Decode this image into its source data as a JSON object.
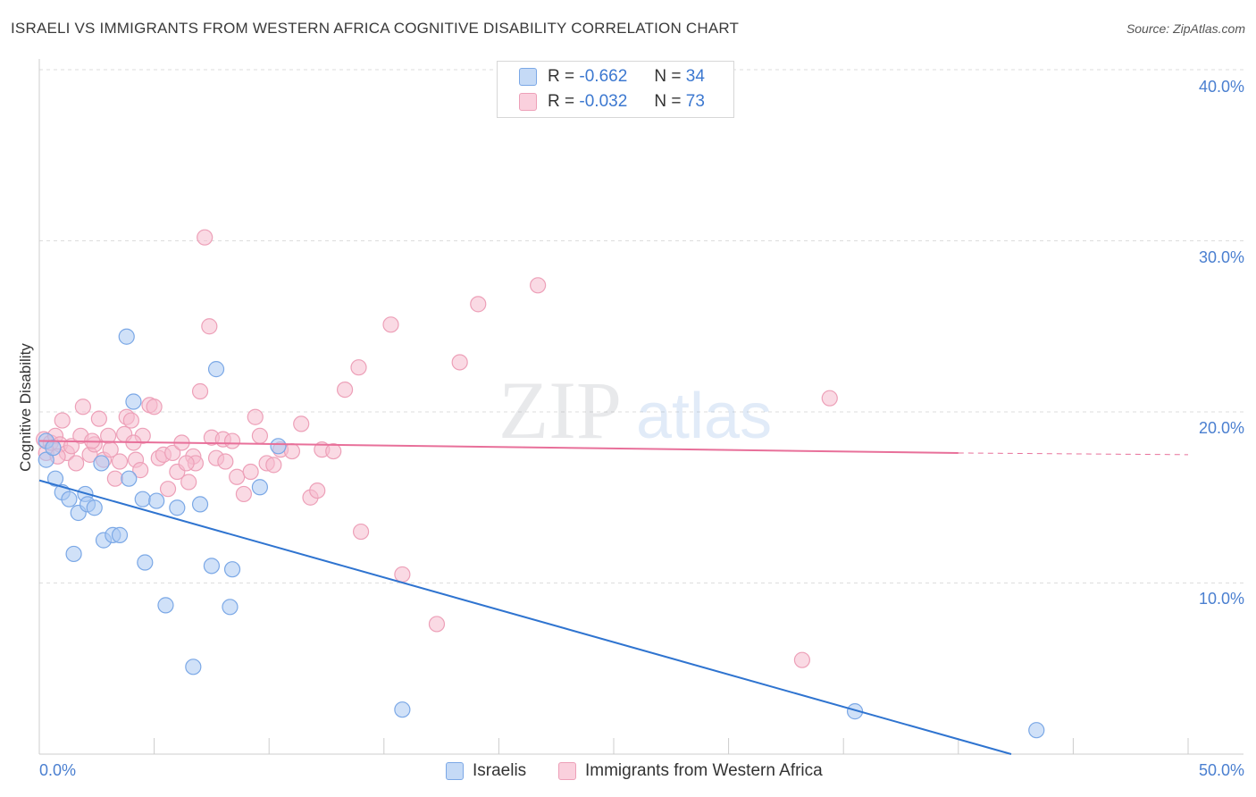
{
  "title": "ISRAELI VS IMMIGRANTS FROM WESTERN AFRICA COGNITIVE DISABILITY CORRELATION CHART",
  "source": "Source: ZipAtlas.com",
  "watermark": {
    "zip": "ZIP",
    "atlas": "atlas"
  },
  "legend_top": [
    {
      "r_label": "R =",
      "r_value": "-0.662",
      "n_label": "N =",
      "n_value": "34"
    },
    {
      "r_label": "R =",
      "r_value": "-0.032",
      "n_label": "N =",
      "n_value": "73"
    }
  ],
  "chart_data": {
    "type": "scatter",
    "title": "ISRAELI VS IMMIGRANTS FROM WESTERN AFRICA COGNITIVE DISABILITY CORRELATION CHART",
    "xlabel": "",
    "ylabel": "Cognitive Disability",
    "xlim": [
      0,
      50
    ],
    "ylim": [
      0,
      40
    ],
    "x_tick_labels": [
      "0.0%",
      "50.0%"
    ],
    "y_ticks": [
      10,
      20,
      30,
      40
    ],
    "y_tick_labels": [
      "10.0%",
      "20.0%",
      "30.0%",
      "40.0%"
    ],
    "grid": true,
    "legend_position": "bottom",
    "colors": {
      "israelis_fill": "#a9c8f2",
      "israelis_stroke": "#7ba8e6",
      "israelis_line": "#2f74d0",
      "immigrants_fill": "#f6bccd",
      "immigrants_stroke": "#eda0b8",
      "immigrants_line": "#e8709a",
      "grid": "#dddddd",
      "axis": "#cccccc"
    },
    "series": [
      {
        "name": "Israelis",
        "trend": {
          "x0": 0,
          "y0": 16.0,
          "x1": 42.3,
          "y1": 0.0
        },
        "points": [
          [
            0.3,
            18.3
          ],
          [
            0.3,
            17.2
          ],
          [
            0.7,
            16.1
          ],
          [
            1.0,
            15.3
          ],
          [
            1.3,
            14.9
          ],
          [
            1.5,
            11.7
          ],
          [
            1.7,
            14.1
          ],
          [
            2.0,
            15.2
          ],
          [
            2.1,
            14.6
          ],
          [
            2.4,
            14.4
          ],
          [
            2.7,
            17.0
          ],
          [
            2.8,
            12.5
          ],
          [
            3.2,
            12.8
          ],
          [
            3.5,
            12.8
          ],
          [
            3.8,
            24.4
          ],
          [
            3.9,
            16.1
          ],
          [
            4.1,
            20.6
          ],
          [
            4.5,
            14.9
          ],
          [
            4.6,
            11.2
          ],
          [
            5.1,
            14.8
          ],
          [
            5.5,
            8.7
          ],
          [
            6.0,
            14.4
          ],
          [
            6.7,
            5.1
          ],
          [
            7.0,
            14.6
          ],
          [
            7.5,
            11.0
          ],
          [
            7.7,
            22.5
          ],
          [
            8.3,
            8.6
          ],
          [
            8.4,
            10.8
          ],
          [
            9.6,
            15.6
          ],
          [
            10.4,
            18.0
          ],
          [
            15.8,
            2.6
          ],
          [
            35.5,
            2.5
          ],
          [
            43.4,
            1.4
          ],
          [
            0.6,
            17.9
          ]
        ]
      },
      {
        "name": "Immigrants from Western Africa",
        "trend": {
          "x0": 0,
          "y0": 18.3,
          "x1": 40.0,
          "y1": 17.6,
          "dash_x1": 50.0,
          "dash_y1": 17.5
        },
        "points": [
          [
            0.2,
            18.4
          ],
          [
            0.3,
            17.6
          ],
          [
            0.5,
            18.2
          ],
          [
            0.7,
            18.6
          ],
          [
            0.9,
            18.1
          ],
          [
            1.0,
            19.5
          ],
          [
            1.2,
            17.6
          ],
          [
            1.4,
            18.0
          ],
          [
            1.6,
            17.0
          ],
          [
            1.8,
            18.6
          ],
          [
            1.9,
            20.3
          ],
          [
            2.2,
            17.5
          ],
          [
            2.4,
            18.1
          ],
          [
            2.6,
            19.6
          ],
          [
            2.8,
            17.2
          ],
          [
            3.0,
            18.6
          ],
          [
            3.1,
            17.8
          ],
          [
            3.3,
            16.1
          ],
          [
            3.5,
            17.1
          ],
          [
            3.7,
            18.7
          ],
          [
            3.8,
            19.7
          ],
          [
            4.0,
            19.5
          ],
          [
            4.2,
            17.2
          ],
          [
            4.4,
            16.6
          ],
          [
            4.5,
            18.6
          ],
          [
            4.8,
            20.4
          ],
          [
            5.0,
            20.3
          ],
          [
            5.2,
            17.3
          ],
          [
            5.4,
            17.5
          ],
          [
            5.6,
            15.5
          ],
          [
            5.8,
            17.6
          ],
          [
            6.0,
            16.5
          ],
          [
            6.2,
            18.2
          ],
          [
            6.5,
            15.9
          ],
          [
            6.7,
            17.4
          ],
          [
            6.8,
            17.0
          ],
          [
            7.0,
            21.2
          ],
          [
            7.2,
            30.2
          ],
          [
            7.4,
            25.0
          ],
          [
            7.5,
            18.5
          ],
          [
            7.7,
            17.3
          ],
          [
            8.0,
            18.4
          ],
          [
            8.1,
            17.1
          ],
          [
            8.4,
            18.3
          ],
          [
            8.6,
            16.2
          ],
          [
            8.9,
            15.2
          ],
          [
            9.2,
            16.5
          ],
          [
            9.4,
            19.7
          ],
          [
            9.6,
            18.6
          ],
          [
            9.9,
            17.0
          ],
          [
            10.2,
            16.9
          ],
          [
            10.5,
            17.8
          ],
          [
            11.0,
            17.7
          ],
          [
            11.4,
            19.3
          ],
          [
            11.8,
            15.0
          ],
          [
            12.1,
            15.4
          ],
          [
            12.3,
            17.8
          ],
          [
            12.8,
            17.7
          ],
          [
            13.3,
            21.3
          ],
          [
            13.9,
            22.6
          ],
          [
            14.0,
            13.0
          ],
          [
            15.3,
            25.1
          ],
          [
            15.8,
            10.5
          ],
          [
            17.3,
            7.6
          ],
          [
            18.3,
            22.9
          ],
          [
            19.1,
            26.3
          ],
          [
            21.7,
            27.4
          ],
          [
            33.2,
            5.5
          ],
          [
            34.4,
            20.8
          ],
          [
            0.8,
            17.4
          ],
          [
            2.3,
            18.3
          ],
          [
            4.1,
            18.2
          ],
          [
            6.4,
            17.0
          ]
        ]
      }
    ]
  }
}
